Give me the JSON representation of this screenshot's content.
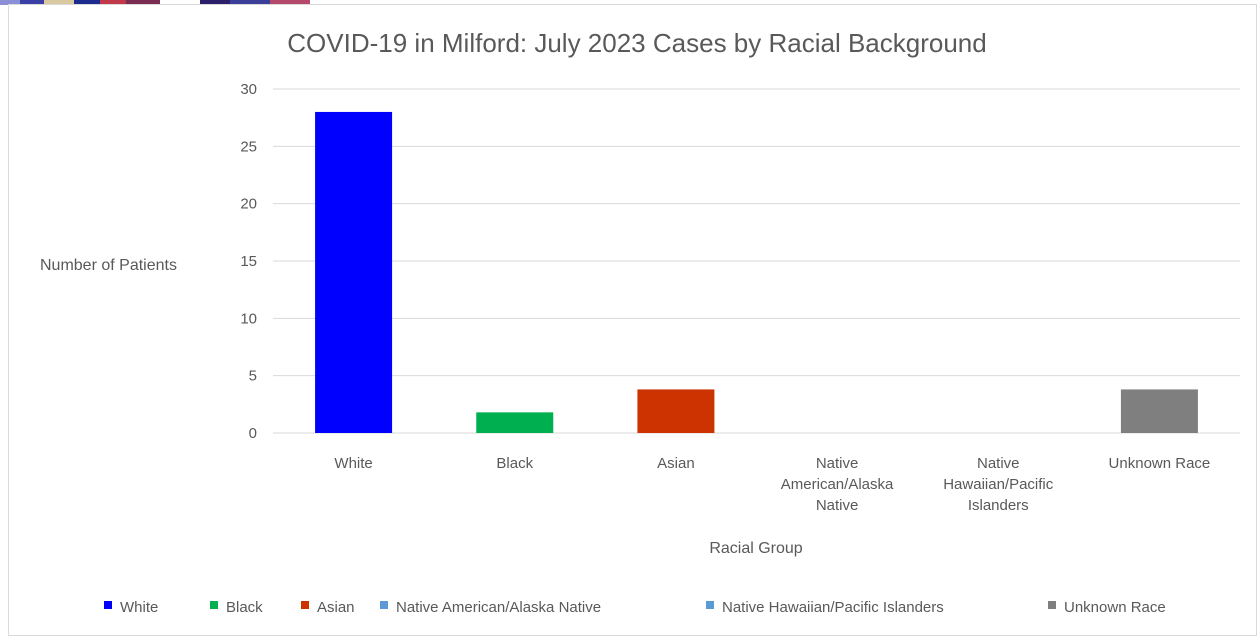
{
  "chart_data": {
    "type": "bar",
    "title": "COVID-19 in Milford: July 2023 Cases by Racial Background",
    "xlabel": "Racial Group",
    "ylabel": "Number of Patients",
    "ylim": [
      0,
      30
    ],
    "yticks": [
      0,
      5,
      10,
      15,
      20,
      25,
      30
    ],
    "grid": true,
    "legend_position": "bottom",
    "categories": [
      "White",
      "Black",
      "Asian",
      "Native American/Alaska Native",
      "Native Hawaiian/Pacific Islanders",
      "Unknown Race"
    ],
    "category_label_lines": [
      [
        "White"
      ],
      [
        "Black"
      ],
      [
        "Asian"
      ],
      [
        "Native",
        "American/Alaska",
        "Native"
      ],
      [
        "Native",
        "Hawaiian/Pacific",
        "Islanders"
      ],
      [
        "Unknown Race"
      ]
    ],
    "values": [
      28,
      1.8,
      3.8,
      0,
      0,
      3.8
    ],
    "colors": [
      "#0000ff",
      "#00b050",
      "#cc3300",
      "#5b9bd5",
      "#5b9bd5",
      "#7f7f7f"
    ],
    "legend": [
      "White",
      "Black",
      "Asian",
      "Native American/Alaska Native",
      "Native Hawaiian/Pacific Islanders",
      "Unknown Race"
    ]
  }
}
